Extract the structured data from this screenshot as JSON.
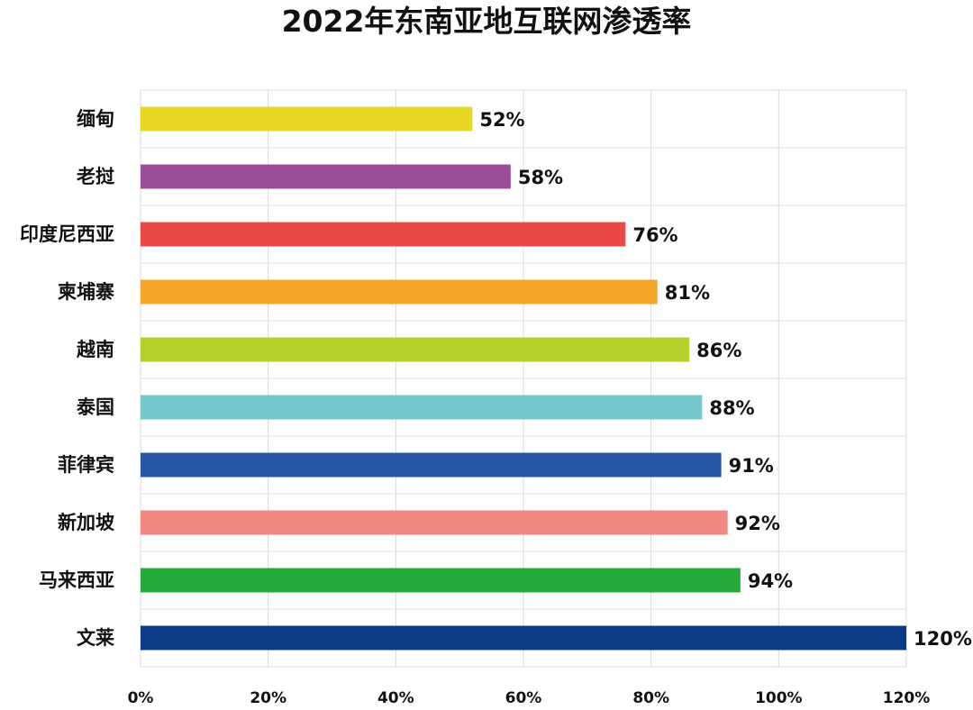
{
  "chart_data": {
    "type": "bar",
    "orientation": "horizontal",
    "title": "2022年东南亚地互联网渗透率",
    "categories": [
      "缅甸",
      "老挝",
      "印度尼西亚",
      "柬埔寨",
      "越南",
      "泰国",
      "菲律宾",
      "新加坡",
      "马来西亚",
      "文莱"
    ],
    "values": [
      52,
      58,
      76,
      81,
      86,
      88,
      91,
      92,
      94,
      120
    ],
    "value_labels": [
      "52%",
      "58%",
      "76%",
      "81%",
      "86%",
      "88%",
      "91%",
      "92%",
      "94%",
      "120%"
    ],
    "bar_colors": [
      "#e8d825",
      "#9c4f99",
      "#ea4747",
      "#f4a62a",
      "#b4d22b",
      "#74c7cd",
      "#2756a6",
      "#f08780",
      "#25a93b",
      "#0a3c88"
    ],
    "x_ticks": [
      "0%",
      "20%",
      "40%",
      "60%",
      "80%",
      "100%",
      "120%"
    ],
    "xlim": [
      0,
      120
    ],
    "xlabel": "",
    "ylabel": "",
    "grid": true,
    "legend": "none"
  }
}
